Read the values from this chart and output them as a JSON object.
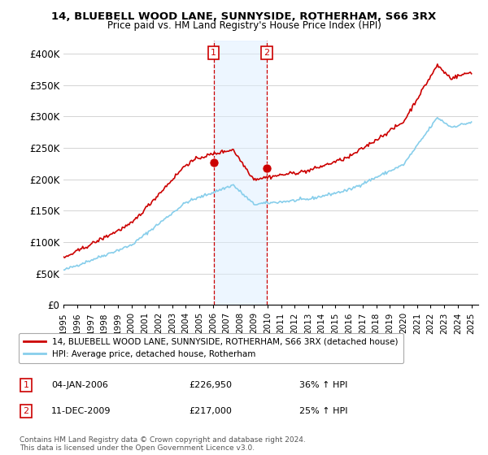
{
  "title_line1": "14, BLUEBELL WOOD LANE, SUNNYSIDE, ROTHERHAM, S66 3RX",
  "title_line2": "Price paid vs. HM Land Registry's House Price Index (HPI)",
  "ylabel_ticks": [
    "£0",
    "£50K",
    "£100K",
    "£150K",
    "£200K",
    "£250K",
    "£300K",
    "£350K",
    "£400K"
  ],
  "ytick_values": [
    0,
    50000,
    100000,
    150000,
    200000,
    250000,
    300000,
    350000,
    400000
  ],
  "ylim": [
    0,
    420000
  ],
  "xlim_start": 1995.0,
  "xlim_end": 2025.5,
  "xtick_years": [
    1995,
    1996,
    1997,
    1998,
    1999,
    2000,
    2001,
    2002,
    2003,
    2004,
    2005,
    2006,
    2007,
    2008,
    2009,
    2010,
    2011,
    2012,
    2013,
    2014,
    2015,
    2016,
    2017,
    2018,
    2019,
    2020,
    2021,
    2022,
    2023,
    2024,
    2025
  ],
  "hpi_color": "#87CEEB",
  "sale_color": "#CC0000",
  "vline_color": "#CC0000",
  "legend_sale_label": "14, BLUEBELL WOOD LANE, SUNNYSIDE, ROTHERHAM, S66 3RX (detached house)",
  "legend_hpi_label": "HPI: Average price, detached house, Rotherham",
  "event1_num": "1",
  "event1_date": "04-JAN-2006",
  "event1_price": "£226,950",
  "event1_pct": "36% ↑ HPI",
  "event2_num": "2",
  "event2_date": "11-DEC-2009",
  "event2_price": "£217,000",
  "event2_pct": "25% ↑ HPI",
  "footnote_line1": "Contains HM Land Registry data © Crown copyright and database right 2024.",
  "footnote_line2": "This data is licensed under the Open Government Licence v3.0.",
  "event1_year": 2006.04,
  "event2_year": 2009.95,
  "event1_price_val": 226950,
  "event2_price_val": 217000,
  "bg_shade_color": "#ddeeff"
}
